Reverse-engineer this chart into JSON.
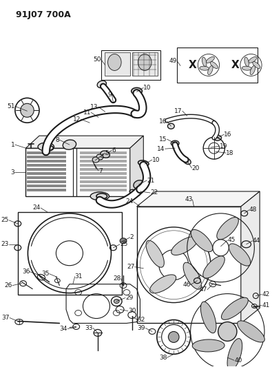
{
  "title": "91J07 700A",
  "bg": "#ffffff",
  "lc": "#1a1a1a",
  "fig_w": 3.95,
  "fig_h": 5.33,
  "dpi": 100
}
